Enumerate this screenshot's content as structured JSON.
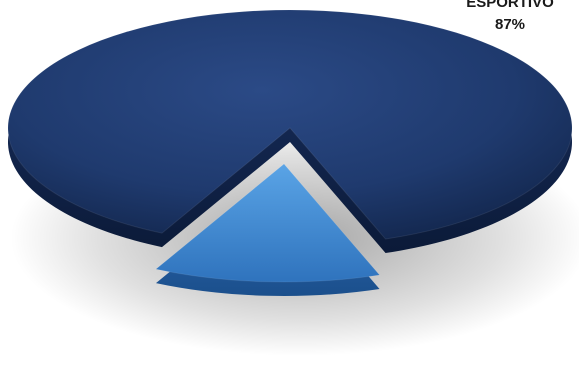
{
  "chart_data": {
    "type": "pie",
    "slices": [
      {
        "label": "ESPORTIVO",
        "value": 87,
        "display": "87%",
        "color": "#1f3a6e"
      },
      {
        "value": 13,
        "color": "#4a90d4"
      }
    ]
  }
}
